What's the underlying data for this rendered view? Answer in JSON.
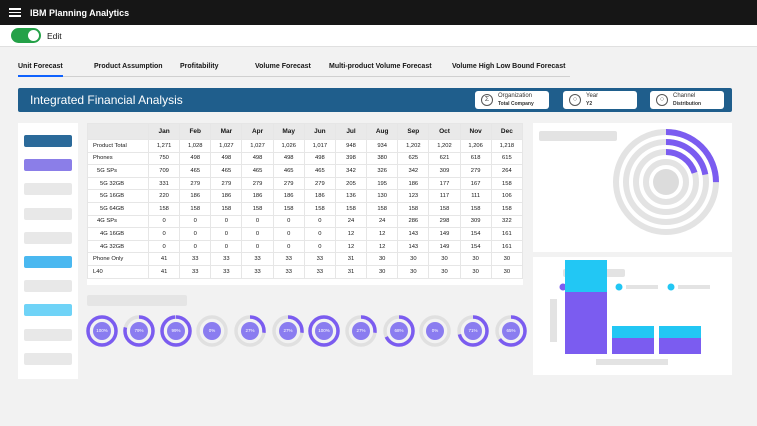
{
  "app": {
    "title": "IBM Planning Analytics",
    "hamburger_icon": "menu-icon"
  },
  "edit": {
    "label": "Edit",
    "enabled": true,
    "toggle_color": "#24a148"
  },
  "tabs": [
    {
      "label": "Unit Forecast",
      "active": true
    },
    {
      "label": "Product Assumption",
      "active": false
    },
    {
      "label": "Profitability",
      "active": false
    },
    {
      "label": "Volume Forecast",
      "active": false
    },
    {
      "label": "Multi-product Volume Forecast",
      "active": false
    },
    {
      "label": "Volume High Low Bound Forecast",
      "active": false
    }
  ],
  "header": {
    "title": "Integrated Financial Analysis",
    "band_color": "#1f5e8c",
    "dimensions": [
      {
        "icon": "sigma-icon",
        "name": "Organization",
        "value": "Total Company"
      },
      {
        "icon": "circle-icon",
        "name": "Year",
        "value": "Y2"
      },
      {
        "icon": "circle-icon",
        "name": "Channel",
        "value": "Distribution"
      }
    ]
  },
  "sidebar": {
    "items": [
      {
        "color": "#2b6a9a"
      },
      {
        "color": "#8b7ee8"
      },
      {
        "color": "#e8e8e8"
      },
      {
        "color": "#e8e8e8"
      },
      {
        "color": "#e8e8e8"
      },
      {
        "color": "#4ab8f0"
      },
      {
        "color": "#e8e8e8"
      },
      {
        "color": "#6fd3f7"
      },
      {
        "color": "#e8e8e8"
      },
      {
        "color": "#e8e8e8"
      }
    ]
  },
  "grid": {
    "months": [
      "Jan",
      "Feb",
      "Mar",
      "Apr",
      "May",
      "Jun",
      "Jul",
      "Aug",
      "Sep",
      "Oct",
      "Nov",
      "Dec"
    ],
    "rows": [
      {
        "label": "Product Total",
        "indent": 0,
        "values": [
          "1,271",
          "1,028",
          "1,027",
          "1,027",
          "1,026",
          "1,017",
          "948",
          "934",
          "1,202",
          "1,202",
          "1,206",
          "1,218"
        ]
      },
      {
        "label": "Phones",
        "indent": 0,
        "values": [
          "750",
          "498",
          "498",
          "498",
          "498",
          "498",
          "398",
          "380",
          "625",
          "621",
          "618",
          "615"
        ]
      },
      {
        "label": "5G SPs",
        "indent": 1,
        "values": [
          "709",
          "465",
          "465",
          "465",
          "465",
          "465",
          "342",
          "326",
          "342",
          "309",
          "279",
          "264"
        ]
      },
      {
        "label": "5G 32GB",
        "indent": 2,
        "values": [
          "331",
          "279",
          "279",
          "279",
          "279",
          "279",
          "205",
          "195",
          "186",
          "177",
          "167",
          "158"
        ]
      },
      {
        "label": "5G 16GB",
        "indent": 2,
        "values": [
          "220",
          "186",
          "186",
          "186",
          "186",
          "186",
          "136",
          "130",
          "123",
          "117",
          "111",
          "106"
        ]
      },
      {
        "label": "5G 64GB",
        "indent": 2,
        "values": [
          "158",
          "158",
          "158",
          "158",
          "158",
          "158",
          "158",
          "158",
          "158",
          "158",
          "158",
          "158"
        ]
      },
      {
        "label": "4G SPs",
        "indent": 1,
        "values": [
          "0",
          "0",
          "0",
          "0",
          "0",
          "0",
          "24",
          "24",
          "286",
          "298",
          "309",
          "322"
        ]
      },
      {
        "label": "4G 16GB",
        "indent": 2,
        "values": [
          "0",
          "0",
          "0",
          "0",
          "0",
          "0",
          "12",
          "12",
          "143",
          "149",
          "154",
          "161"
        ]
      },
      {
        "label": "4G 32GB",
        "indent": 2,
        "values": [
          "0",
          "0",
          "0",
          "0",
          "0",
          "0",
          "12",
          "12",
          "143",
          "149",
          "154",
          "161"
        ]
      },
      {
        "label": "Phone Only",
        "indent": 0,
        "values": [
          "41",
          "33",
          "33",
          "33",
          "33",
          "33",
          "31",
          "30",
          "30",
          "30",
          "30",
          "30"
        ]
      },
      {
        "label": "L40",
        "indent": 0,
        "values": [
          "41",
          "33",
          "33",
          "33",
          "33",
          "33",
          "31",
          "30",
          "30",
          "30",
          "30",
          "30"
        ]
      }
    ]
  },
  "gauges": [
    {
      "label": "100%",
      "value": 1.0
    },
    {
      "label": "79%",
      "value": 0.79
    },
    {
      "label": "99%",
      "value": 0.99
    },
    {
      "label": "0%",
      "value": 0.0
    },
    {
      "label": "27%",
      "value": 0.27
    },
    {
      "label": "27%",
      "value": 0.27
    },
    {
      "label": "100%",
      "value": 1.0
    },
    {
      "label": "27%",
      "value": 0.27
    },
    {
      "label": "68%",
      "value": 0.68
    },
    {
      "label": "0%",
      "value": 0.0
    },
    {
      "label": "71%",
      "value": 0.71
    },
    {
      "label": "65%",
      "value": 0.65
    }
  ],
  "colors": {
    "purple": "#7b5cf0",
    "cyan": "#22c7f4",
    "track": "#e0e0e0",
    "accent_tab": "#0f62fe"
  },
  "radial_chart": {
    "rings": [
      {
        "fraction": 0.25,
        "color": "#7b5cf0"
      },
      {
        "fraction": 0.22,
        "color": "#7b5cf0"
      },
      {
        "fraction": 0.2,
        "color": "#7b5cf0"
      },
      {
        "fraction": 0,
        "color": "#7b5cf0"
      }
    ]
  },
  "bar_chart": {
    "legend_colors": [
      "#7b5cf0",
      "#22c7f4",
      "#22c7f4"
    ],
    "stacks": [
      {
        "bottom": 0.62,
        "top": 0.32
      },
      {
        "bottom": 0.16,
        "top": 0.12
      },
      {
        "bottom": 0.16,
        "top": 0.12
      }
    ]
  }
}
